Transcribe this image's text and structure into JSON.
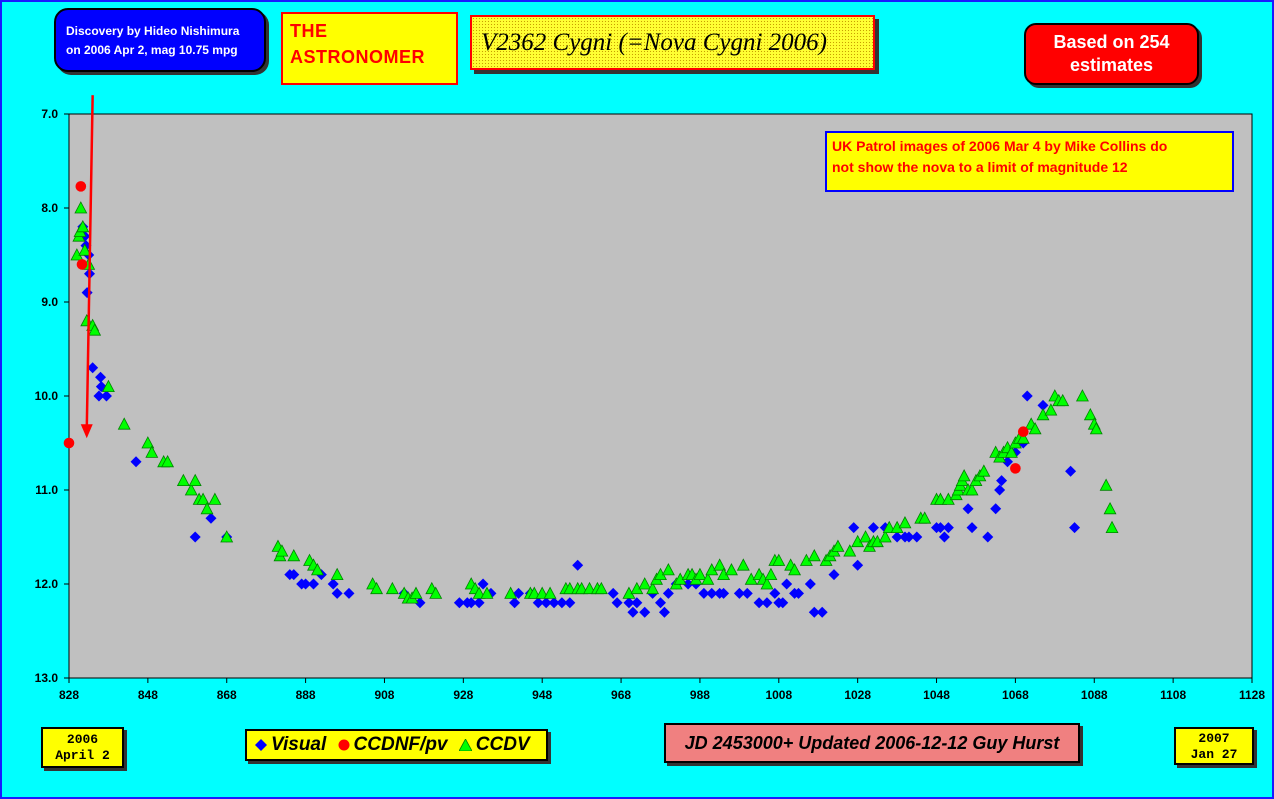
{
  "discovery": {
    "line1": "Discovery by Hideo Nishimura",
    "line2": "on 2006 Apr 2, mag 10.75 mpg"
  },
  "publisher": {
    "line1": "THE",
    "line2": "ASTRONOMER"
  },
  "title": "V2362 Cygni (=Nova Cygni 2006)",
  "estimates_note": {
    "line1": "Based on 254",
    "line2": "estimates"
  },
  "patrol_note": {
    "line1": "UK Patrol images of 2006 Mar 4 by Mike Collins do",
    "line2": "not show the nova to a limit of magnitude 12"
  },
  "start_date": {
    "year": "2006",
    "day": "April 2"
  },
  "end_date": {
    "year": "2007",
    "day": "Jan 27"
  },
  "footer": "JD 2453000+ Updated 2006-12-12 Guy Hurst",
  "colors": {
    "visual": "#0000ff",
    "ccdnf": "#ff0000",
    "ccdv": "#00ff00",
    "plot_bg": "#c0c0c0",
    "page_bg": "#00ffff"
  },
  "chart_data": {
    "type": "scatter",
    "title": "V2362 Cygni (=Nova Cygni 2006)",
    "xlabel": "",
    "ylabel": "",
    "xlim": [
      828,
      1128
    ],
    "ylim": [
      7.0,
      13.0
    ],
    "y_inverted": true,
    "grid": false,
    "x_ticks": [
      828,
      848,
      868,
      888,
      908,
      928,
      948,
      968,
      988,
      1008,
      1028,
      1048,
      1068,
      1088,
      1108,
      1128
    ],
    "y_ticks": [
      "7.0",
      "8.0",
      "9.0",
      "10.0",
      "11.0",
      "12.0",
      "13.0"
    ],
    "legend": [
      "Visual",
      "CCDNF/pv",
      "CCDV"
    ],
    "annotations": [
      {
        "type": "arrow",
        "from": [
          834,
          6.8
        ],
        "to": [
          832.5,
          10.45
        ]
      }
    ],
    "series": [
      {
        "name": "Visual",
        "marker": "diamond",
        "points": [
          [
            831.5,
            8.2
          ],
          [
            832,
            8.3
          ],
          [
            832.3,
            8.4
          ],
          [
            832.6,
            8.9
          ],
          [
            833,
            8.5
          ],
          [
            833.2,
            8.7
          ],
          [
            834,
            9.7
          ],
          [
            835.6,
            10.0
          ],
          [
            836,
            9.8
          ],
          [
            836.2,
            9.9
          ],
          [
            837.5,
            10.0
          ],
          [
            845,
            10.7
          ],
          [
            860,
            11.5
          ],
          [
            864,
            11.3
          ],
          [
            868,
            11.5
          ],
          [
            884,
            11.9
          ],
          [
            885,
            11.9
          ],
          [
            887,
            12.0
          ],
          [
            888,
            12.0
          ],
          [
            890,
            12.0
          ],
          [
            892,
            11.9
          ],
          [
            895,
            12.0
          ],
          [
            896,
            12.1
          ],
          [
            899,
            12.1
          ],
          [
            913,
            12.1
          ],
          [
            917,
            12.2
          ],
          [
            927,
            12.2
          ],
          [
            929,
            12.2
          ],
          [
            930,
            12.2
          ],
          [
            932,
            12.2
          ],
          [
            933,
            12.0
          ],
          [
            935,
            12.1
          ],
          [
            941,
            12.2
          ],
          [
            942,
            12.1
          ],
          [
            945,
            12.1
          ],
          [
            947,
            12.2
          ],
          [
            949,
            12.2
          ],
          [
            951,
            12.2
          ],
          [
            953,
            12.2
          ],
          [
            955,
            12.2
          ],
          [
            957,
            11.8
          ],
          [
            966,
            12.1
          ],
          [
            967,
            12.2
          ],
          [
            970,
            12.2
          ],
          [
            971,
            12.3
          ],
          [
            972,
            12.2
          ],
          [
            974,
            12.3
          ],
          [
            976,
            12.1
          ],
          [
            978,
            12.2
          ],
          [
            979,
            12.3
          ],
          [
            980,
            12.1
          ],
          [
            982,
            12.0
          ],
          [
            985,
            12.0
          ],
          [
            987,
            12.0
          ],
          [
            989,
            12.1
          ],
          [
            991,
            12.1
          ],
          [
            993,
            12.1
          ],
          [
            994,
            12.1
          ],
          [
            998,
            12.1
          ],
          [
            1000,
            12.1
          ],
          [
            1003,
            12.2
          ],
          [
            1005,
            12.2
          ],
          [
            1007,
            12.1
          ],
          [
            1008,
            12.2
          ],
          [
            1009,
            12.2
          ],
          [
            1010,
            12.0
          ],
          [
            1012,
            12.1
          ],
          [
            1013,
            12.1
          ],
          [
            1016,
            12.0
          ],
          [
            1017,
            12.3
          ],
          [
            1019,
            12.3
          ],
          [
            1022,
            11.9
          ],
          [
            1027,
            11.4
          ],
          [
            1028,
            11.8
          ],
          [
            1032,
            11.4
          ],
          [
            1035,
            11.4
          ],
          [
            1038,
            11.5
          ],
          [
            1040,
            11.5
          ],
          [
            1041,
            11.5
          ],
          [
            1043,
            11.5
          ],
          [
            1048,
            11.4
          ],
          [
            1049,
            11.4
          ],
          [
            1050,
            11.5
          ],
          [
            1051,
            11.4
          ],
          [
            1056,
            11.2
          ],
          [
            1057,
            11.4
          ],
          [
            1061,
            11.5
          ],
          [
            1063,
            11.2
          ],
          [
            1064,
            11.0
          ],
          [
            1064.5,
            10.9
          ],
          [
            1066,
            10.7
          ],
          [
            1068,
            10.6
          ],
          [
            1070,
            10.5
          ],
          [
            1071,
            10.0
          ],
          [
            1075,
            10.1
          ],
          [
            1082,
            10.8
          ],
          [
            1083,
            11.4
          ]
        ]
      },
      {
        "name": "CCDNF/pv",
        "marker": "circle",
        "points": [
          [
            828,
            10.5
          ],
          [
            831,
            7.77
          ],
          [
            831.3,
            8.6
          ],
          [
            1068,
            10.77
          ],
          [
            1070,
            10.38
          ]
        ]
      },
      {
        "name": "CCDV",
        "marker": "triangle",
        "points": [
          [
            830,
            8.5
          ],
          [
            830.5,
            8.3
          ],
          [
            830.8,
            8.25
          ],
          [
            831,
            8.0
          ],
          [
            831.5,
            8.2
          ],
          [
            832,
            8.45
          ],
          [
            832.5,
            9.2
          ],
          [
            833,
            8.6
          ],
          [
            834,
            9.25
          ],
          [
            834.5,
            9.3
          ],
          [
            838,
            9.9
          ],
          [
            842,
            10.3
          ],
          [
            848,
            10.5
          ],
          [
            849,
            10.6
          ],
          [
            852,
            10.7
          ],
          [
            853,
            10.7
          ],
          [
            857,
            10.9
          ],
          [
            859,
            11.0
          ],
          [
            860,
            10.9
          ],
          [
            861,
            11.1
          ],
          [
            862,
            11.1
          ],
          [
            863,
            11.2
          ],
          [
            865,
            11.1
          ],
          [
            868,
            11.5
          ],
          [
            881,
            11.6
          ],
          [
            881.5,
            11.7
          ],
          [
            882,
            11.65
          ],
          [
            885,
            11.7
          ],
          [
            889,
            11.75
          ],
          [
            890,
            11.8
          ],
          [
            891,
            11.85
          ],
          [
            896,
            11.9
          ],
          [
            905,
            12.0
          ],
          [
            906,
            12.05
          ],
          [
            910,
            12.05
          ],
          [
            913,
            12.1
          ],
          [
            914,
            12.15
          ],
          [
            915,
            12.15
          ],
          [
            916,
            12.1
          ],
          [
            920,
            12.05
          ],
          [
            921,
            12.1
          ],
          [
            930,
            12.0
          ],
          [
            931,
            12.05
          ],
          [
            932,
            12.1
          ],
          [
            934,
            12.1
          ],
          [
            940,
            12.1
          ],
          [
            945,
            12.1
          ],
          [
            946,
            12.1
          ],
          [
            948,
            12.1
          ],
          [
            950,
            12.1
          ],
          [
            954,
            12.05
          ],
          [
            955,
            12.05
          ],
          [
            957,
            12.05
          ],
          [
            958,
            12.05
          ],
          [
            960,
            12.05
          ],
          [
            962,
            12.05
          ],
          [
            963,
            12.05
          ],
          [
            970,
            12.1
          ],
          [
            972,
            12.05
          ],
          [
            974,
            12.0
          ],
          [
            976,
            12.05
          ],
          [
            977,
            11.95
          ],
          [
            978,
            11.9
          ],
          [
            980,
            11.85
          ],
          [
            982,
            12.0
          ],
          [
            983,
            11.95
          ],
          [
            985,
            11.9
          ],
          [
            986,
            11.9
          ],
          [
            987,
            11.95
          ],
          [
            988,
            11.9
          ],
          [
            990,
            11.95
          ],
          [
            991,
            11.85
          ],
          [
            993,
            11.8
          ],
          [
            994,
            11.9
          ],
          [
            996,
            11.85
          ],
          [
            999,
            11.8
          ],
          [
            1001,
            11.95
          ],
          [
            1003,
            11.9
          ],
          [
            1004,
            11.95
          ],
          [
            1005,
            12.0
          ],
          [
            1006,
            11.9
          ],
          [
            1007,
            11.75
          ],
          [
            1008,
            11.75
          ],
          [
            1011,
            11.8
          ],
          [
            1012,
            11.85
          ],
          [
            1015,
            11.75
          ],
          [
            1017,
            11.7
          ],
          [
            1020,
            11.75
          ],
          [
            1021,
            11.7
          ],
          [
            1022,
            11.65
          ],
          [
            1023,
            11.6
          ],
          [
            1026,
            11.65
          ],
          [
            1028,
            11.55
          ],
          [
            1030,
            11.5
          ],
          [
            1031,
            11.6
          ],
          [
            1032,
            11.55
          ],
          [
            1033,
            11.55
          ],
          [
            1035,
            11.5
          ],
          [
            1036,
            11.4
          ],
          [
            1038,
            11.4
          ],
          [
            1040,
            11.35
          ],
          [
            1044,
            11.3
          ],
          [
            1045,
            11.3
          ],
          [
            1048,
            11.1
          ],
          [
            1049,
            11.1
          ],
          [
            1051,
            11.1
          ],
          [
            1053,
            11.05
          ],
          [
            1053.5,
            11.0
          ],
          [
            1054,
            10.95
          ],
          [
            1054.5,
            10.9
          ],
          [
            1055,
            10.85
          ],
          [
            1056,
            11.0
          ],
          [
            1057,
            11.0
          ],
          [
            1058,
            10.9
          ],
          [
            1059,
            10.85
          ],
          [
            1060,
            10.8
          ],
          [
            1063,
            10.6
          ],
          [
            1064,
            10.65
          ],
          [
            1065,
            10.6
          ],
          [
            1066,
            10.55
          ],
          [
            1067,
            10.6
          ],
          [
            1068,
            10.5
          ],
          [
            1069,
            10.45
          ],
          [
            1070,
            10.45
          ],
          [
            1072,
            10.3
          ],
          [
            1073,
            10.35
          ],
          [
            1075,
            10.2
          ],
          [
            1077,
            10.15
          ],
          [
            1078,
            10.0
          ],
          [
            1079,
            10.05
          ],
          [
            1080,
            10.05
          ],
          [
            1085,
            10.0
          ],
          [
            1087,
            10.2
          ],
          [
            1088,
            10.3
          ],
          [
            1088.5,
            10.35
          ],
          [
            1091,
            10.95
          ],
          [
            1092,
            11.2
          ],
          [
            1092.5,
            11.4
          ]
        ]
      }
    ]
  }
}
